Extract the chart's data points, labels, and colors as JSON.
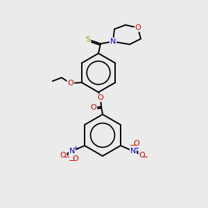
{
  "bg_color": "#ebebeb",
  "atom_colors": {
    "C": "#000000",
    "N": "#0000cc",
    "O": "#cc0000",
    "S": "#999900"
  },
  "bond_color": "#000000",
  "figsize": [
    3.0,
    3.0
  ],
  "dpi": 100
}
